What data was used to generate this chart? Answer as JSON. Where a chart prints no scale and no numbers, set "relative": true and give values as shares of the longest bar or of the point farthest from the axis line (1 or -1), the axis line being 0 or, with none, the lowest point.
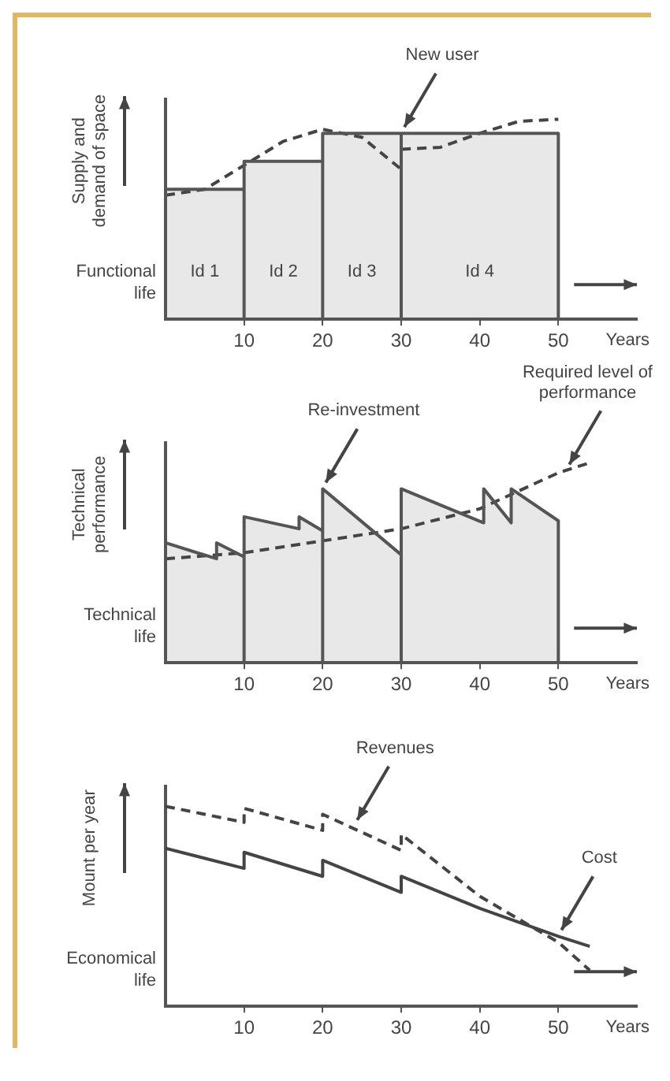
{
  "chart_data": [
    {
      "type": "line",
      "relative": true,
      "ylabel": "Supply and demand of space",
      "xlabel": "Years",
      "xlim": [
        0,
        60
      ],
      "xticks": [
        10,
        20,
        30,
        40,
        50
      ],
      "tick_labels": "x",
      "annotations": [
        "Functional life",
        "Id 1",
        "Id 2",
        "Id 3",
        "Id 4",
        {
          "text": "New user",
          "x": 30,
          "y": 0.93
        }
      ],
      "series": [
        {
          "type": "area",
          "color": "#555555",
          "x": [
            0,
            0,
            10,
            10,
            10,
            20,
            20,
            20,
            30,
            30,
            30,
            50,
            50
          ],
          "values": [
            0,
            0.65,
            0.65,
            0,
            0.79,
            0.79,
            0,
            0.93,
            0.93,
            0,
            0.93,
            0.93,
            0
          ]
        },
        {
          "color": "#444444",
          "line_style": "dashed",
          "x": [
            0,
            5,
            10,
            15,
            20,
            25,
            30,
            30,
            35,
            40,
            45,
            50
          ],
          "values": [
            0.62,
            0.65,
            0.77,
            0.89,
            0.95,
            0.91,
            0.75,
            0.85,
            0.86,
            0.93,
            0.99,
            1.0
          ]
        }
      ]
    },
    {
      "type": "line",
      "relative": true,
      "ylabel": "Technical performance",
      "xlabel": "Years",
      "xlim": [
        0,
        60
      ],
      "xticks": [
        10,
        20,
        30,
        40,
        50
      ],
      "tick_labels": "x",
      "annotations": [
        "Technical life",
        {
          "text": "Re-investment",
          "x": 20,
          "y": 0.87
        },
        {
          "text": "Required level of performance",
          "x": 51,
          "y": 0.96
        }
      ],
      "series": [
        {
          "type": "area",
          "color": "#555555",
          "x": [
            0,
            0,
            6.5,
            6.5,
            10,
            10,
            10,
            17,
            17,
            20,
            20,
            20,
            30,
            30,
            30,
            40.5,
            40.5,
            44,
            44,
            50,
            50
          ],
          "values": [
            0,
            0.6,
            0.52,
            0.6,
            0.53,
            0,
            0.73,
            0.67,
            0.73,
            0.66,
            0,
            0.87,
            0.54,
            0,
            0.87,
            0.7,
            0.87,
            0.7,
            0.87,
            0.71,
            0
          ]
        },
        {
          "color": "#444444",
          "line_style": "dashed",
          "x": [
            0,
            10,
            20,
            30,
            40,
            50,
            54
          ],
          "values": [
            0.52,
            0.55,
            0.61,
            0.67,
            0.77,
            0.95,
            1.0
          ]
        }
      ]
    },
    {
      "type": "line",
      "relative": true,
      "ylabel": "Mount per year",
      "xlabel": "Years",
      "xlim": [
        0,
        60
      ],
      "xticks": [
        10,
        20,
        30,
        40,
        50
      ],
      "tick_labels": "x",
      "annotations": [
        "Economical life",
        {
          "text": "Revenues",
          "x": 24,
          "y": 0.9
        },
        {
          "text": "Cost",
          "x": 50,
          "y": 0.35
        }
      ],
      "series": [
        {
          "color": "#444444",
          "line_style": "dashed",
          "x": [
            0,
            10,
            10,
            20,
            20,
            30,
            30,
            40,
            50,
            54
          ],
          "values": [
            1.0,
            0.92,
            0.99,
            0.88,
            0.96,
            0.78,
            0.86,
            0.55,
            0.32,
            0.18
          ]
        },
        {
          "color": "#444444",
          "line_style": "solid",
          "x": [
            0,
            10,
            10,
            20,
            20,
            30,
            30,
            40,
            50,
            54
          ],
          "values": [
            0.79,
            0.69,
            0.77,
            0.65,
            0.73,
            0.57,
            0.65,
            0.49,
            0.35,
            0.3
          ]
        }
      ]
    }
  ]
}
